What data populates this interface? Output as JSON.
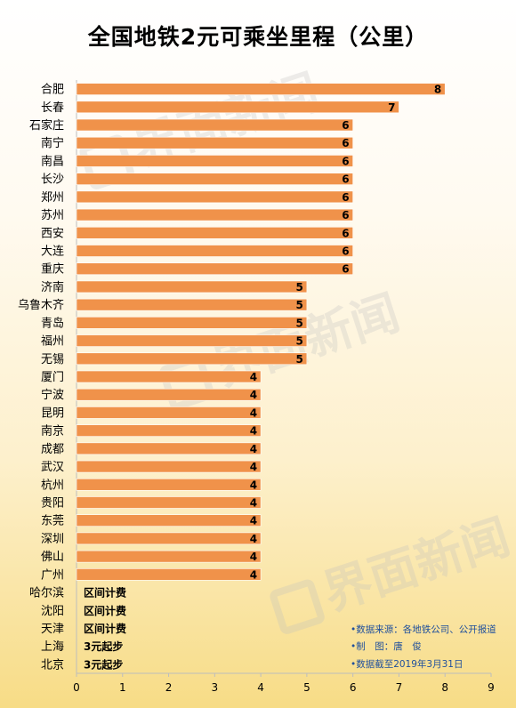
{
  "title": "全国地铁2元可乘坐里程（公里）",
  "watermark": "界面新闻",
  "colors": {
    "bar": "#f0924a",
    "bar_edge": "#ffffff",
    "axis": "#bdbdbd",
    "source_text": "#1f4f9c"
  },
  "chart_data": {
    "type": "bar",
    "orientation": "horizontal",
    "categories": [
      "合肥",
      "长春",
      "石家庄",
      "南宁",
      "南昌",
      "长沙",
      "郑州",
      "苏州",
      "西安",
      "大连",
      "重庆",
      "济南",
      "乌鲁木齐",
      "青岛",
      "福州",
      "无锡",
      "厦门",
      "宁波",
      "昆明",
      "南京",
      "成都",
      "武汉",
      "杭州",
      "贵阳",
      "东莞",
      "深圳",
      "佛山",
      "广州",
      "哈尔滨",
      "沈阳",
      "天津",
      "上海",
      "北京"
    ],
    "values": [
      8,
      7,
      6,
      6,
      6,
      6,
      6,
      6,
      6,
      6,
      6,
      5,
      5,
      5,
      5,
      5,
      4,
      4,
      4,
      4,
      4,
      4,
      4,
      4,
      4,
      4,
      4,
      4,
      null,
      null,
      null,
      null,
      null
    ],
    "value_labels": [
      "8",
      "7",
      "6",
      "6",
      "6",
      "6",
      "6",
      "6",
      "6",
      "6",
      "6",
      "5",
      "5",
      "5",
      "5",
      "5",
      "4",
      "4",
      "4",
      "4",
      "4",
      "4",
      "4",
      "4",
      "4",
      "4",
      "4",
      "4",
      "区间计费",
      "区间计费",
      "区间计费",
      "3元起步",
      "3元起步"
    ],
    "xlim": [
      0,
      9
    ],
    "xticks": [
      "0",
      "1",
      "2",
      "3",
      "4",
      "5",
      "6",
      "7",
      "8",
      "9"
    ],
    "grid": false,
    "legend": "none"
  },
  "source_notes": [
    "•数据来源：各地铁公司、公开报道",
    "•制　图：唐　俊",
    "•数据截至2019年3月31日"
  ]
}
